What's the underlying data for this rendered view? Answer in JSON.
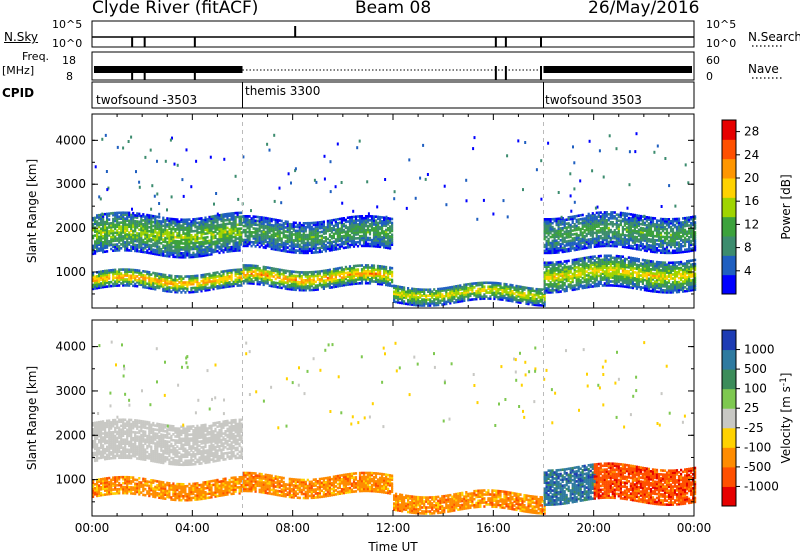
{
  "header": {
    "station": "Clyde River (fitACF)",
    "beam": "Beam 08",
    "date": "26/May/2016"
  },
  "noise_panel": {
    "left_label": "N.Sky",
    "left_ticks": [
      "10^5",
      "10^0"
    ],
    "right_ticks": [
      "10^5",
      "10^0"
    ],
    "right_label": "N.Search"
  },
  "freq_panel": {
    "left_label_1": "Freq.",
    "left_label_2": "[MHz]",
    "left_ticks": [
      "18",
      "8"
    ],
    "right_ticks": [
      "60",
      "0"
    ],
    "right_label": "Nave"
  },
  "cpid": {
    "label": "CPID",
    "segments": [
      {
        "name": "twofsound -3503",
        "start_hour": 0,
        "end_hour": 6
      },
      {
        "name": "themis 3300",
        "start_hour": 6,
        "end_hour": 18
      },
      {
        "name": "twofsound 3503",
        "start_hour": 18,
        "end_hour": 24
      }
    ]
  },
  "colors": {
    "power_scale": [
      "#0000ff",
      "#1f5fc0",
      "#3c8c6e",
      "#3ca23c",
      "#9fd400",
      "#ffd200",
      "#ff9600",
      "#ff5000",
      "#e60000"
    ],
    "velocity_scale": [
      "#e60000",
      "#ff5000",
      "#ff8c00",
      "#ffd200",
      "#c8c8c4",
      "#7ec850",
      "#3c8c5a",
      "#2e7aa0",
      "#1e3cb4"
    ]
  },
  "chart_data": [
    {
      "type": "heatmap",
      "name": "power",
      "xlabel": "",
      "ylabel": "Slant Range [km]",
      "xlim": [
        0,
        24
      ],
      "ylim": [
        180,
        4600
      ],
      "x_ticks": [
        "00:00",
        "04:00",
        "08:00",
        "12:00",
        "16:00",
        "20:00",
        "00:00"
      ],
      "y_ticks": [
        1000,
        2000,
        3000,
        4000
      ],
      "colorbar": {
        "label": "Power [dB]",
        "ticks": [
          4,
          8,
          12,
          16,
          20,
          24,
          28
        ],
        "range": [
          0,
          30
        ]
      },
      "echo_bands": [
        {
          "hours": [
            0,
            6
          ],
          "range_km": [
            600,
            1000
          ],
          "peak_power_db": 24
        },
        {
          "hours": [
            0,
            6
          ],
          "range_km": [
            1400,
            2300
          ],
          "peak_power_db": 14
        },
        {
          "hours": [
            6,
            12
          ],
          "range_km": [
            650,
            1100
          ],
          "peak_power_db": 22
        },
        {
          "hours": [
            6,
            12
          ],
          "range_km": [
            1500,
            2200
          ],
          "peak_power_db": 12
        },
        {
          "hours": [
            12,
            18
          ],
          "range_km": [
            300,
            700
          ],
          "peak_power_db": 20
        },
        {
          "hours": [
            18,
            24
          ],
          "range_km": [
            600,
            1300
          ],
          "peak_power_db": 20
        },
        {
          "hours": [
            18,
            24
          ],
          "range_km": [
            1500,
            2300
          ],
          "peak_power_db": 12
        }
      ]
    },
    {
      "type": "heatmap",
      "name": "velocity",
      "xlabel": "Time UT",
      "ylabel": "Slant Range [km]",
      "xlim": [
        0,
        24
      ],
      "ylim": [
        180,
        4600
      ],
      "x_ticks": [
        "00:00",
        "04:00",
        "08:00",
        "12:00",
        "16:00",
        "20:00",
        "00:00"
      ],
      "y_ticks": [
        1000,
        2000,
        3000,
        4000
      ],
      "colorbar": {
        "label": "Velocity [m s^-1]",
        "ticks": [
          "1000",
          "500",
          "100",
          "25",
          "-25",
          "-100",
          "-500",
          "-1000"
        ]
      },
      "echo_bands": [
        {
          "hours": [
            0,
            6
          ],
          "range_km": [
            600,
            1000
          ],
          "velocity_class": "-100"
        },
        {
          "hours": [
            0,
            6
          ],
          "range_km": [
            1400,
            2300
          ],
          "velocity_class": "ground"
        },
        {
          "hours": [
            6,
            12
          ],
          "range_km": [
            650,
            1100
          ],
          "velocity_class": "-100"
        },
        {
          "hours": [
            12,
            18
          ],
          "range_km": [
            300,
            700
          ],
          "velocity_class": "-100"
        },
        {
          "hours": [
            18,
            20
          ],
          "range_km": [
            500,
            1300
          ],
          "velocity_class": "500"
        },
        {
          "hours": [
            20,
            24
          ],
          "range_km": [
            500,
            1300
          ],
          "velocity_class": "-500"
        }
      ]
    }
  ]
}
